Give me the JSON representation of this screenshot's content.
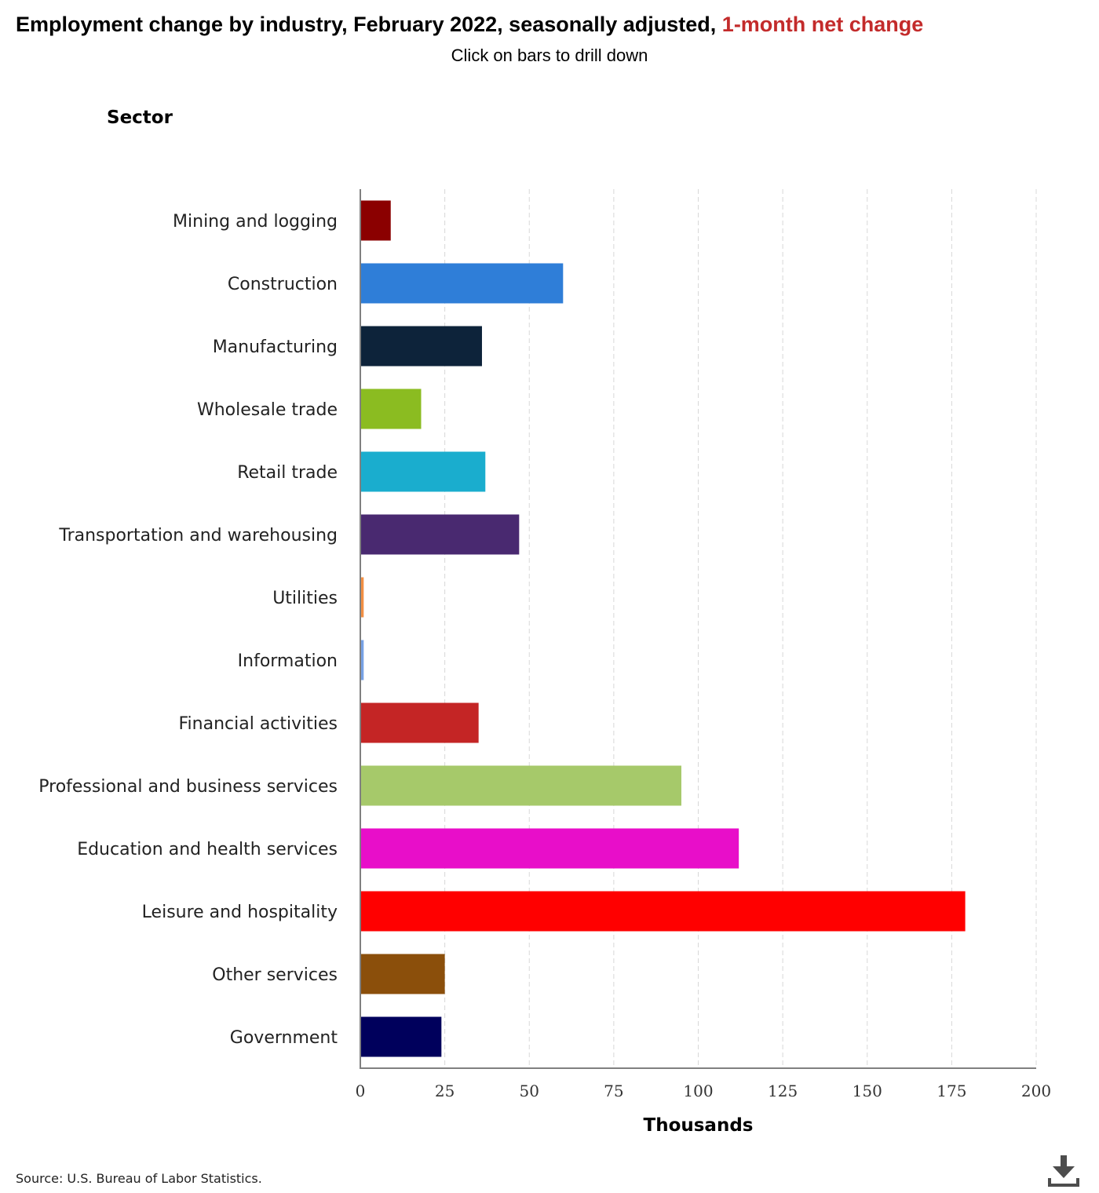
{
  "title": {
    "main": "Employment change by industry, February 2022, seasonally adjusted, ",
    "highlight": "1-month net change"
  },
  "subtitle": "Click on bars to drill down",
  "axis_title_y": "Sector",
  "source": "Source: U.S. Bureau of Labor Statistics.",
  "download_icon": "download-icon",
  "chart_data": {
    "type": "bar",
    "orientation": "horizontal",
    "categories": [
      "Mining and logging",
      "Construction",
      "Manufacturing",
      "Wholesale trade",
      "Retail trade",
      "Transportation and warehousing",
      "Utilities",
      "Information",
      "Financial activities",
      "Professional and business services",
      "Education and health services",
      "Leisure and hospitality",
      "Other services",
      "Government"
    ],
    "values": [
      9,
      60,
      36,
      18,
      37,
      47,
      1,
      1,
      35,
      95,
      112,
      179,
      25,
      24
    ],
    "colors": [
      "#8b0000",
      "#2f7ed8",
      "#0d233a",
      "#8bbc21",
      "#1aadce",
      "#492970",
      "#f28f43",
      "#77a1e5",
      "#c42525",
      "#a6c96a",
      "#e80ec9",
      "#ff0000",
      "#8b4f0b",
      "#00005c"
    ],
    "xlabel": "Thousands",
    "ylabel": "Sector",
    "xlim": [
      0,
      200
    ],
    "xticks": [
      0,
      25,
      50,
      75,
      100,
      125,
      150,
      175,
      200
    ],
    "grid": true
  }
}
